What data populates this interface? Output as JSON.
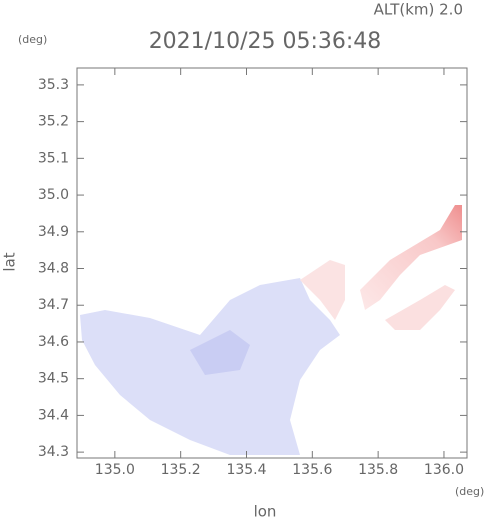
{
  "chart_data": {
    "type": "map",
    "title": "2021/10/25 05:36:48",
    "annotation": "ALT(km) 2.0",
    "x_label": "lon",
    "y_label": "lat",
    "x_unit": "(deg)",
    "y_unit": "(deg)",
    "xlim": [
      134.885,
      136.07
    ],
    "ylim": [
      34.284,
      35.346
    ],
    "xticks": [
      {
        "value": 135.0,
        "label": "135.0"
      },
      135.2,
      135.4,
      135.6,
      135.8,
      {
        "value": 136.0,
        "label": "136.0"
      }
    ],
    "yticks": [
      34.3,
      34.4,
      34.5,
      34.6,
      34.7,
      34.8,
      34.9,
      {
        "value": 35.0,
        "label": "35.0"
      },
      35.1,
      35.2,
      35.3
    ]
  }
}
